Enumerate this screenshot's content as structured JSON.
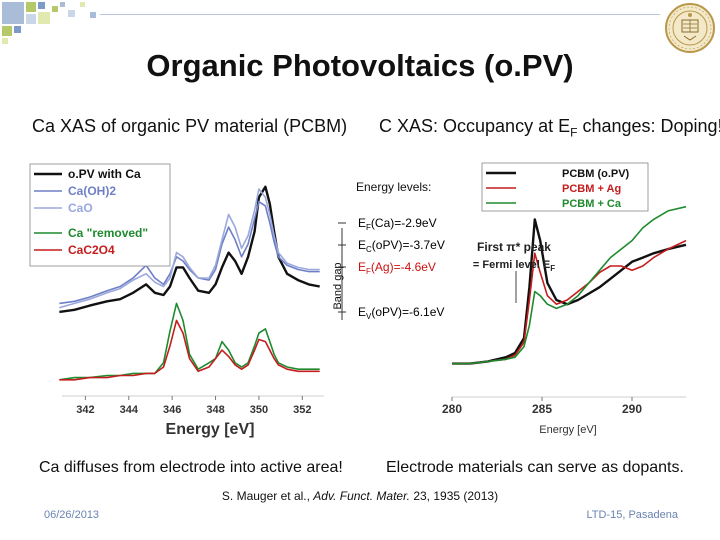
{
  "slide": {
    "title": "Organic Photovoltaics (o.PV)",
    "left_subtitle": "Ca XAS of organic PV material (PCBM)",
    "right_subtitle_prefix": "C XAS: Occupancy at E",
    "right_subtitle_sub": "F",
    "right_subtitle_suffix": " changes: Doping!",
    "left_caption": "Ca diffuses from electrode into active area!",
    "right_caption": "Electrode materials can serve as dopants.",
    "citation_prefix": "S. Mauger et al., ",
    "citation_journal": "Adv. Funct. Mater.",
    "citation_suffix": " 23, 1935 (2013)",
    "footer_date": "06/26/2013",
    "footer_venue": "LTD-15, Pasadena",
    "logo": "university-seal",
    "colors": {
      "accent_blue": "#6a84b0",
      "deco_green": "#b5c96a",
      "deco_lime": "#dfe9b0"
    }
  },
  "energy_levels": {
    "heading": "Energy levels:",
    "band_gap_label": "Band gap",
    "levels": [
      {
        "prefix": "E",
        "sub": "F",
        "rest": "(Ca)=-2.9eV",
        "color": "#000000"
      },
      {
        "prefix": "E",
        "sub": "C",
        "rest": "(oPV)=-3.7eV",
        "color": "#000000"
      },
      {
        "prefix": "E",
        "sub": "F",
        "rest": "(Ag)=-4.6eV",
        "color": "#cc1111"
      },
      {
        "prefix": "E",
        "sub": "V",
        "rest": "(oPV)=-6.1eV",
        "color": "#000000"
      }
    ]
  },
  "annotation": {
    "line1": "First π* peak",
    "line2_prefix": "= Fermi level E",
    "line2_sub": "F"
  },
  "chart_data": [
    {
      "type": "line",
      "title": "",
      "xlabel": "Energy [eV]",
      "ylabel": "",
      "xlim": [
        340,
        353
      ],
      "ylim": [
        0,
        1
      ],
      "x_ticks": [
        342,
        344,
        346,
        348,
        350,
        352
      ],
      "legend": [
        "o.PV with Ca",
        "Ca(OH)2",
        "CaO",
        "Ca \"removed\"",
        "CaC2O4"
      ],
      "legend_colors": [
        "#111111",
        "#6f7fc7",
        "#9aa8dd",
        "#1f8a2e",
        "#c41d1d"
      ],
      "series": [
        {
          "name": "o.PV with Ca",
          "color": "#111111",
          "x": [
            340.8,
            341.5,
            342.2,
            343,
            343.6,
            344.2,
            344.8,
            345.2,
            345.6,
            345.9,
            346.2,
            346.5,
            346.8,
            347.2,
            347.7,
            348.0,
            348.3,
            348.6,
            348.9,
            349.2,
            349.5,
            349.8,
            350.0,
            350.3,
            350.5,
            350.7,
            350.9,
            351.3,
            351.8,
            352.3,
            352.8
          ],
          "y": [
            0.34,
            0.35,
            0.37,
            0.39,
            0.4,
            0.43,
            0.47,
            0.43,
            0.42,
            0.46,
            0.55,
            0.55,
            0.5,
            0.44,
            0.43,
            0.47,
            0.55,
            0.62,
            0.58,
            0.52,
            0.6,
            0.72,
            0.88,
            0.93,
            0.85,
            0.72,
            0.6,
            0.52,
            0.49,
            0.47,
            0.46
          ]
        },
        {
          "name": "Ca(OH)2",
          "color": "#6f7fc7",
          "x": [
            340.8,
            341.5,
            342.2,
            343,
            343.6,
            344.2,
            344.8,
            345.2,
            345.6,
            345.9,
            346.2,
            346.5,
            346.8,
            347.2,
            347.7,
            348.0,
            348.3,
            348.6,
            348.9,
            349.2,
            349.5,
            349.8,
            350.0,
            350.3,
            350.5,
            350.7,
            350.9,
            351.3,
            351.8,
            352.3,
            352.8
          ],
          "y": [
            0.38,
            0.39,
            0.41,
            0.44,
            0.46,
            0.5,
            0.56,
            0.5,
            0.47,
            0.52,
            0.6,
            0.58,
            0.54,
            0.5,
            0.49,
            0.54,
            0.66,
            0.74,
            0.68,
            0.6,
            0.66,
            0.78,
            0.86,
            0.84,
            0.76,
            0.67,
            0.6,
            0.56,
            0.54,
            0.53,
            0.53
          ]
        },
        {
          "name": "CaO",
          "color": "#9aa8dd",
          "x": [
            340.8,
            341.5,
            342.2,
            343,
            343.6,
            344.2,
            344.8,
            345.2,
            345.6,
            345.9,
            346.2,
            346.5,
            346.8,
            347.2,
            347.7,
            348.0,
            348.3,
            348.6,
            348.9,
            349.2,
            349.5,
            349.8,
            350.0,
            350.3,
            350.5,
            350.7,
            350.9,
            351.3,
            351.8,
            352.3,
            352.8
          ],
          "y": [
            0.36,
            0.38,
            0.4,
            0.43,
            0.45,
            0.49,
            0.52,
            0.48,
            0.46,
            0.5,
            0.62,
            0.6,
            0.55,
            0.5,
            0.5,
            0.56,
            0.68,
            0.8,
            0.74,
            0.64,
            0.7,
            0.82,
            0.92,
            0.88,
            0.8,
            0.7,
            0.62,
            0.57,
            0.55,
            0.54,
            0.54
          ]
        },
        {
          "name": "Ca \"removed\"",
          "color": "#1f8a2e",
          "x": [
            340.8,
            341.5,
            342.2,
            343,
            343.6,
            344.2,
            344.8,
            345.2,
            345.6,
            345.9,
            346.2,
            346.5,
            346.8,
            347.2,
            347.7,
            348.0,
            348.3,
            348.6,
            348.9,
            349.2,
            349.5,
            349.8,
            350.0,
            350.3,
            350.5,
            350.7,
            350.9,
            351.3,
            351.8,
            352.3,
            352.8
          ],
          "y": [
            0.02,
            0.03,
            0.03,
            0.04,
            0.04,
            0.05,
            0.05,
            0.05,
            0.1,
            0.25,
            0.38,
            0.3,
            0.14,
            0.07,
            0.1,
            0.12,
            0.2,
            0.16,
            0.1,
            0.08,
            0.1,
            0.18,
            0.24,
            0.26,
            0.2,
            0.14,
            0.1,
            0.08,
            0.07,
            0.07,
            0.07
          ]
        },
        {
          "name": "CaC2O4",
          "color": "#c41d1d",
          "x": [
            340.8,
            341.5,
            342.2,
            343,
            343.6,
            344.2,
            344.8,
            345.2,
            345.6,
            345.9,
            346.2,
            346.5,
            346.8,
            347.2,
            347.7,
            348.0,
            348.3,
            348.6,
            348.9,
            349.2,
            349.5,
            349.8,
            350.0,
            350.3,
            350.5,
            350.7,
            350.9,
            351.3,
            351.8,
            352.3,
            352.8
          ],
          "y": [
            0.02,
            0.02,
            0.03,
            0.03,
            0.04,
            0.04,
            0.05,
            0.05,
            0.08,
            0.18,
            0.3,
            0.24,
            0.12,
            0.06,
            0.08,
            0.12,
            0.16,
            0.13,
            0.09,
            0.07,
            0.09,
            0.16,
            0.21,
            0.2,
            0.16,
            0.12,
            0.09,
            0.07,
            0.06,
            0.06,
            0.06
          ]
        }
      ]
    },
    {
      "type": "line",
      "title": "",
      "xlabel": "Energy [eV]",
      "ylabel": "",
      "xlim": [
        280,
        293
      ],
      "ylim": [
        0,
        1
      ],
      "x_ticks": [
        280,
        285,
        290
      ],
      "legend": [
        "PCBM (o.PV)",
        "PCBM + Ag",
        "PCBM + Ca"
      ],
      "legend_colors": [
        "#111111",
        "#c41d1d",
        "#1f8a2e"
      ],
      "series": [
        {
          "name": "PCBM (o.PV)",
          "color": "#111111",
          "x": [
            280,
            281,
            282,
            283,
            283.5,
            284,
            284.3,
            284.6,
            284.9,
            285.3,
            285.8,
            286.4,
            287,
            287.6,
            288.2,
            288.8,
            289.4,
            290,
            290.6,
            291.2,
            292,
            293
          ],
          "y": [
            0.12,
            0.12,
            0.13,
            0.15,
            0.17,
            0.24,
            0.48,
            0.8,
            0.7,
            0.5,
            0.42,
            0.4,
            0.42,
            0.45,
            0.48,
            0.52,
            0.56,
            0.6,
            0.62,
            0.64,
            0.66,
            0.68
          ]
        },
        {
          "name": "PCBM + Ag",
          "color": "#c41d1d",
          "x": [
            280,
            281,
            282,
            283,
            283.5,
            284,
            284.3,
            284.6,
            284.9,
            285.3,
            285.8,
            286.4,
            287,
            287.6,
            288.2,
            288.8,
            289.4,
            290,
            290.6,
            291.2,
            292,
            293
          ],
          "y": [
            0.12,
            0.12,
            0.13,
            0.14,
            0.16,
            0.22,
            0.42,
            0.64,
            0.55,
            0.44,
            0.4,
            0.42,
            0.46,
            0.5,
            0.55,
            0.58,
            0.58,
            0.56,
            0.58,
            0.62,
            0.66,
            0.7
          ]
        },
        {
          "name": "PCBM + Ca",
          "color": "#1f8a2e",
          "x": [
            280,
            281,
            282,
            283,
            283.5,
            284,
            284.3,
            284.6,
            284.9,
            285.3,
            285.8,
            286.4,
            287,
            287.6,
            288.2,
            288.8,
            289.4,
            290,
            290.6,
            291.2,
            292,
            293
          ],
          "y": [
            0.12,
            0.12,
            0.13,
            0.14,
            0.15,
            0.2,
            0.3,
            0.46,
            0.44,
            0.4,
            0.38,
            0.4,
            0.44,
            0.5,
            0.56,
            0.62,
            0.66,
            0.7,
            0.76,
            0.8,
            0.84,
            0.86
          ]
        }
      ]
    }
  ]
}
